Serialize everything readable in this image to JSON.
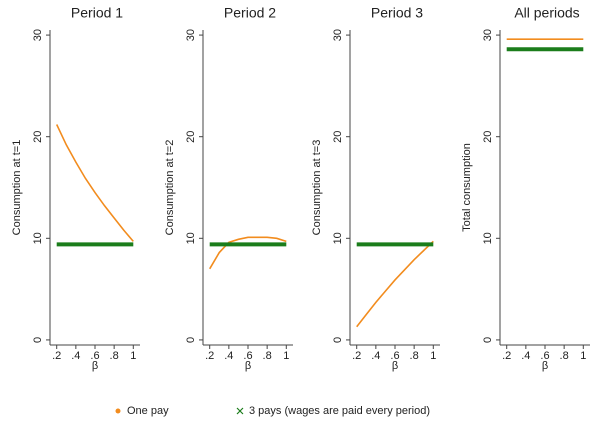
{
  "chart_data": [
    {
      "type": "line",
      "title": "Period 1",
      "x_label": "β",
      "y_label": "Consumption at t=1",
      "x": [
        0.2,
        0.3,
        0.4,
        0.5,
        0.6,
        0.7,
        0.8,
        0.9,
        1
      ],
      "series": [
        {
          "color": "#f28c1e",
          "values": [
            21.2,
            19.2,
            17.5,
            15.9,
            14.5,
            13.2,
            12.0,
            10.8,
            9.7
          ]
        },
        {
          "color": "#1b7d1b",
          "values": [
            9.4,
            9.4,
            9.4,
            9.4,
            9.4,
            9.4,
            9.4,
            9.4,
            9.4
          ]
        }
      ],
      "xlim": [
        0.13,
        1.07
      ],
      "ylim": [
        -0.5,
        30.5
      ],
      "xticks": [
        {
          "value": 0.2,
          "label": ".2"
        },
        {
          "value": 0.4,
          "label": ".4"
        },
        {
          "value": 0.6,
          "label": ".6"
        },
        {
          "value": 0.8,
          "label": ".8"
        },
        1
      ],
      "yticks": [
        0,
        10,
        20,
        30
      ]
    },
    {
      "type": "line",
      "title": "Period 2",
      "x_label": "β",
      "y_label": "Consumption at t=2",
      "x": [
        0.2,
        0.3,
        0.4,
        0.5,
        0.6,
        0.7,
        0.8,
        0.9,
        1
      ],
      "series": [
        {
          "color": "#f28c1e",
          "values": [
            7.0,
            8.6,
            9.6,
            9.9,
            10.1,
            10.1,
            10.1,
            10.0,
            9.7
          ]
        },
        {
          "color": "#1b7d1b",
          "values": [
            9.4,
            9.4,
            9.4,
            9.4,
            9.4,
            9.4,
            9.4,
            9.4,
            9.4
          ]
        }
      ],
      "xlim": [
        0.13,
        1.07
      ],
      "ylim": [
        -0.5,
        30.5
      ],
      "xticks": [
        {
          "value": 0.2,
          "label": ".2"
        },
        {
          "value": 0.4,
          "label": ".4"
        },
        {
          "value": 0.6,
          "label": ".6"
        },
        {
          "value": 0.8,
          "label": ".8"
        },
        1
      ],
      "yticks": [
        0,
        10,
        20,
        30
      ]
    },
    {
      "type": "line",
      "title": "Period 3",
      "x_label": "β",
      "y_label": "Consumption at t=3",
      "x": [
        0.2,
        0.3,
        0.4,
        0.5,
        0.6,
        0.7,
        0.8,
        0.9,
        1
      ],
      "series": [
        {
          "color": "#f28c1e",
          "values": [
            1.3,
            2.5,
            3.7,
            4.8,
            5.9,
            6.9,
            7.9,
            8.8,
            9.7
          ]
        },
        {
          "color": "#1b7d1b",
          "values": [
            9.4,
            9.4,
            9.4,
            9.4,
            9.4,
            9.4,
            9.4,
            9.4,
            9.4
          ]
        }
      ],
      "xlim": [
        0.13,
        1.07
      ],
      "ylim": [
        -0.5,
        30.5
      ],
      "xticks": [
        {
          "value": 0.2,
          "label": ".2"
        },
        {
          "value": 0.4,
          "label": ".4"
        },
        {
          "value": 0.6,
          "label": ".6"
        },
        {
          "value": 0.8,
          "label": ".8"
        },
        1
      ],
      "yticks": [
        0,
        10,
        20,
        30
      ]
    },
    {
      "type": "line",
      "title": "All periods",
      "x_label": "β",
      "y_label": "Total consumption",
      "x": [
        0.2,
        0.3,
        0.4,
        0.5,
        0.6,
        0.7,
        0.8,
        0.9,
        1
      ],
      "series": [
        {
          "color": "#f28c1e",
          "values": [
            29.6,
            29.6,
            29.6,
            29.6,
            29.6,
            29.6,
            29.6,
            29.6,
            29.6
          ]
        },
        {
          "color": "#1b7d1b",
          "values": [
            28.6,
            28.6,
            28.6,
            28.6,
            28.6,
            28.6,
            28.6,
            28.6,
            28.6
          ]
        }
      ],
      "xlim": [
        0.13,
        1.07
      ],
      "ylim": [
        -0.5,
        30.5
      ],
      "xticks": [
        {
          "value": 0.2,
          "label": ".2"
        },
        {
          "value": 0.4,
          "label": ".4"
        },
        {
          "value": 0.6,
          "label": ".6"
        },
        {
          "value": 0.8,
          "label": ".8"
        },
        1
      ],
      "yticks": [
        0,
        10,
        20,
        30
      ]
    }
  ],
  "legend": [
    {
      "name": "One pay",
      "color": "#f28c1e",
      "marker": "dot"
    },
    {
      "name": "3 pays (wages are paid every period)",
      "color": "#1b7d1b",
      "marker": "cross"
    }
  ]
}
